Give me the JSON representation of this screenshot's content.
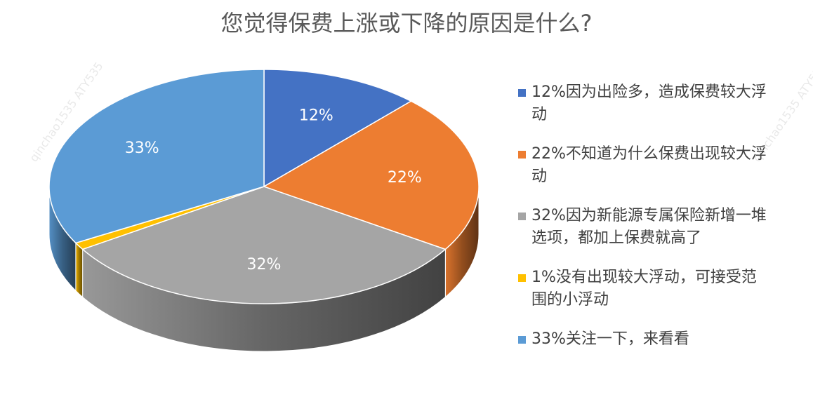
{
  "title": "您觉得保费上涨或下降的原因是什么?",
  "watermarks": [
    "qinchao1535  ATY535",
    "qinchao1535  ATY535"
  ],
  "chart_data": {
    "type": "pie",
    "style": "3d",
    "legend_position": "right",
    "slices": [
      {
        "label": "12%因为出险多，造成保费较大浮动",
        "value": 12,
        "data_label": "12%",
        "color": "#4472C4"
      },
      {
        "label": "22%不知道为什么保费出现较大浮动",
        "value": 22,
        "data_label": "22%",
        "color": "#ED7D31"
      },
      {
        "label": "32%因为新能源专属保险新增一堆选项，都加上保费就高了",
        "value": 32,
        "data_label": "32%",
        "color": "#A5A5A5"
      },
      {
        "label": "1%没有出现较大浮动，可接受范围的小浮动",
        "value": 1,
        "data_label": "",
        "color": "#FFC000"
      },
      {
        "label": "33%关注一下，来看看",
        "value": 33,
        "data_label": "33%",
        "color": "#5B9BD5"
      }
    ]
  }
}
